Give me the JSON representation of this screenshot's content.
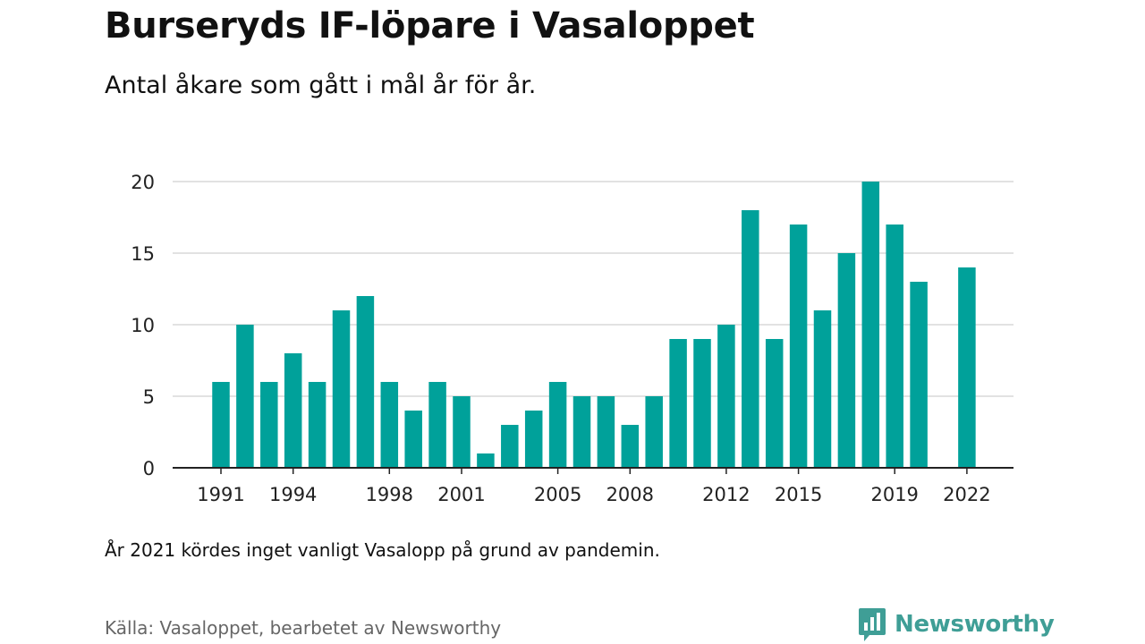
{
  "title": "Burseryds IF-löpare i Vasaloppet",
  "subtitle": "Antal åkare som gått i mål år för år.",
  "note": "År 2021 kördes inget vanligt Vasalopp på grund av pandemin.",
  "source": "Källa: Vasaloppet, bearbetet av Newsworthy",
  "brand": {
    "name": "Newsworthy",
    "icon": "newsworthy-logo-icon",
    "color": "#3f9e96"
  },
  "chart_data": {
    "type": "bar",
    "color": "#00a19a",
    "categories": [
      1991,
      1992,
      1993,
      1994,
      1995,
      1996,
      1997,
      1998,
      1999,
      2000,
      2001,
      2002,
      2003,
      2004,
      2005,
      2006,
      2007,
      2008,
      2009,
      2010,
      2011,
      2012,
      2013,
      2014,
      2015,
      2016,
      2017,
      2018,
      2019,
      2020,
      2021,
      2022
    ],
    "values": [
      6,
      10,
      6,
      8,
      6,
      11,
      12,
      6,
      4,
      6,
      5,
      1,
      3,
      4,
      6,
      5,
      5,
      3,
      5,
      9,
      9,
      10,
      18,
      9,
      17,
      11,
      15,
      20,
      17,
      13,
      null,
      14
    ],
    "xticks": [
      1991,
      1994,
      1998,
      2001,
      2005,
      2008,
      2012,
      2015,
      2019,
      2022
    ],
    "yticks": [
      0,
      5,
      10,
      15,
      20
    ],
    "ylim": [
      0,
      20
    ],
    "grid": true
  }
}
